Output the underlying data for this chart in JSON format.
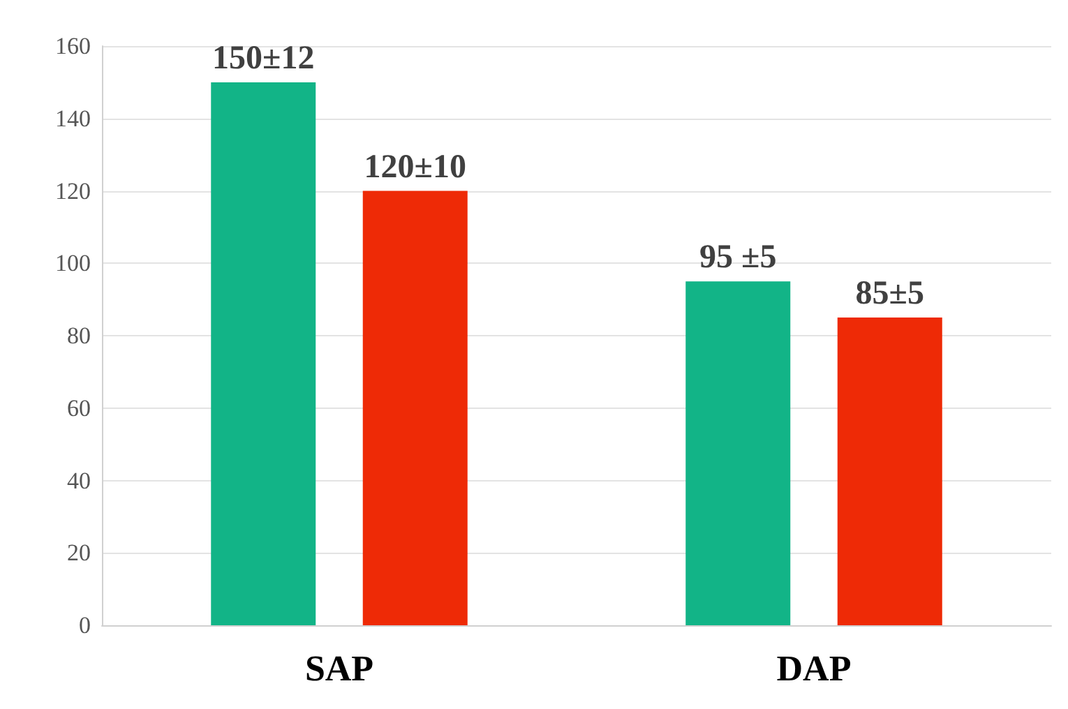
{
  "chart_data": {
    "type": "bar",
    "categories": [
      "SAP",
      "DAP"
    ],
    "series": [
      {
        "color": "#12b487",
        "values": [
          150,
          95
        ],
        "value_labels": [
          "150±12",
          "95 ±5"
        ]
      },
      {
        "color": "#ee2a06",
        "values": [
          120,
          85
        ],
        "value_labels": [
          "120±10",
          "85±5"
        ]
      }
    ],
    "ylim": [
      0,
      160
    ],
    "yticks": [
      0,
      20,
      40,
      60,
      80,
      100,
      120,
      140,
      160
    ],
    "grid": "y"
  }
}
